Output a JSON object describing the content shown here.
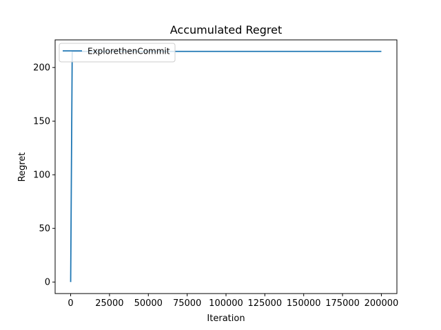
{
  "chart_data": {
    "type": "line",
    "title": "Accumulated Regret",
    "xlabel": "Iteration",
    "ylabel": "Regret",
    "xlim": [
      -10000,
      210000
    ],
    "ylim": [
      -10.75,
      225.75
    ],
    "xticks": [
      0,
      25000,
      50000,
      75000,
      100000,
      125000,
      150000,
      175000,
      200000
    ],
    "xtick_labels": [
      "0",
      "25000",
      "50000",
      "75000",
      "100000",
      "125000",
      "150000",
      "175000",
      "200000"
    ],
    "yticks": [
      0,
      50,
      100,
      150,
      200
    ],
    "ytick_labels": [
      "0",
      "50",
      "100",
      "150",
      "200"
    ],
    "grid": false,
    "legend_position": "upper-left",
    "series": [
      {
        "name": "ExplorethenCommit",
        "color": "#1f77b4",
        "x": [
          0,
          1000,
          200000
        ],
        "y": [
          0,
          215,
          215
        ]
      }
    ]
  }
}
